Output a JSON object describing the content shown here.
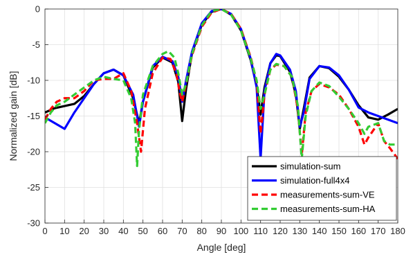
{
  "chart_data": {
    "type": "line",
    "xlabel": "Angle [deg]",
    "ylabel": "Normalized gain [dB]",
    "xlim": [
      0,
      180
    ],
    "ylim": [
      -30,
      0
    ],
    "xticks": [
      0,
      10,
      20,
      30,
      40,
      50,
      60,
      70,
      80,
      90,
      100,
      110,
      120,
      130,
      140,
      150,
      160,
      170,
      180
    ],
    "yticks": [
      0,
      -5,
      -10,
      -15,
      -20,
      -25,
      -30
    ],
    "grid": true,
    "legend_position": "bottom-right",
    "series": [
      {
        "name": "simulation-sum",
        "color": "#000000",
        "dash": "solid",
        "x": [
          0,
          5,
          10,
          15,
          20,
          25,
          30,
          35,
          40,
          45,
          48,
          50,
          55,
          60,
          65,
          68,
          70,
          72,
          75,
          80,
          85,
          90,
          95,
          100,
          105,
          108,
          110,
          112,
          115,
          118,
          120,
          125,
          128,
          130,
          132,
          135,
          140,
          145,
          150,
          155,
          160,
          165,
          170,
          175,
          180
        ],
        "y": [
          -14.5,
          -13.9,
          -13.6,
          -13.3,
          -12.2,
          -10.5,
          -9.0,
          -8.5,
          -9.3,
          -12.5,
          -16.0,
          -13.0,
          -8.2,
          -6.8,
          -7.5,
          -10.2,
          -15.7,
          -11.2,
          -6.2,
          -2.2,
          -0.4,
          0,
          -0.8,
          -3.0,
          -7.2,
          -10.8,
          -14.8,
          -11.0,
          -7.6,
          -6.5,
          -6.6,
          -8.8,
          -12.0,
          -16.8,
          -14.0,
          -9.6,
          -8.0,
          -8.3,
          -9.5,
          -11.3,
          -13.5,
          -15.2,
          -15.5,
          -14.8,
          -14.0
        ]
      },
      {
        "name": "simulation-full4x4",
        "color": "#0000ff",
        "dash": "solid",
        "x": [
          0,
          5,
          10,
          15,
          20,
          25,
          30,
          35,
          40,
          45,
          48,
          50,
          55,
          60,
          65,
          68,
          70,
          72,
          75,
          80,
          85,
          90,
          95,
          100,
          105,
          108,
          110,
          112,
          115,
          118,
          120,
          125,
          128,
          130,
          132,
          135,
          140,
          145,
          150,
          155,
          160,
          165,
          170,
          175,
          180
        ],
        "y": [
          -15.2,
          -16.0,
          -16.8,
          -14.5,
          -12.5,
          -10.5,
          -9.0,
          -8.5,
          -9.3,
          -12.0,
          -16.5,
          -13.0,
          -8.0,
          -6.7,
          -7.3,
          -9.5,
          -13.0,
          -10.0,
          -6.0,
          -2.0,
          -0.3,
          0,
          -0.7,
          -2.8,
          -7.0,
          -11.0,
          -21.0,
          -11.5,
          -7.6,
          -6.3,
          -6.5,
          -8.5,
          -11.5,
          -16.5,
          -14.5,
          -9.8,
          -8.0,
          -8.2,
          -9.3,
          -11.3,
          -13.8,
          -14.5,
          -15.0,
          -15.5,
          -16.0
        ]
      },
      {
        "name": "measurements-sum-VE",
        "color": "#ff0000",
        "dash": "dashed",
        "x": [
          0,
          3,
          6,
          10,
          15,
          20,
          25,
          30,
          35,
          40,
          44,
          47,
          49,
          51,
          55,
          60,
          64,
          67,
          69,
          70,
          72,
          75,
          80,
          85,
          90,
          95,
          100,
          105,
          108,
          110,
          112,
          115,
          118,
          122,
          126,
          129,
          131,
          133,
          136,
          140,
          145,
          150,
          155,
          160,
          163,
          165,
          170,
          173,
          176,
          180
        ],
        "y": [
          -15.5,
          -14.0,
          -13.0,
          -12.5,
          -12.5,
          -11.5,
          -10.0,
          -9.8,
          -9.8,
          -9.0,
          -11.5,
          -16.0,
          -20.0,
          -14.0,
          -9.0,
          -6.8,
          -7.0,
          -9.0,
          -12.0,
          -13.0,
          -10.5,
          -6.5,
          -2.5,
          -0.5,
          0,
          -0.7,
          -2.8,
          -6.8,
          -10.2,
          -17.5,
          -12.0,
          -8.5,
          -7.8,
          -8.0,
          -9.5,
          -14.0,
          -20.5,
          -14.5,
          -11.5,
          -10.5,
          -11.0,
          -12.0,
          -14.0,
          -16.5,
          -19.0,
          -18.0,
          -16.0,
          -18.5,
          -19.5,
          -21.0
        ]
      },
      {
        "name": "measurements-sum-HA",
        "color": "#33cc33",
        "dash": "dashed",
        "x": [
          0,
          3,
          6,
          10,
          15,
          20,
          25,
          30,
          35,
          40,
          44,
          46,
          47,
          48,
          50,
          55,
          60,
          63,
          66,
          68,
          70,
          72,
          75,
          80,
          85,
          90,
          95,
          100,
          105,
          108,
          110,
          112,
          115,
          118,
          122,
          126,
          129,
          131,
          133,
          136,
          140,
          145,
          150,
          155,
          160,
          163,
          165,
          170,
          173,
          176,
          180
        ],
        "y": [
          -16.0,
          -14.5,
          -13.5,
          -13.0,
          -12.0,
          -11.0,
          -10.0,
          -9.5,
          -9.8,
          -10.0,
          -12.5,
          -16.0,
          -22.0,
          -17.0,
          -12.0,
          -8.0,
          -6.3,
          -5.9,
          -6.8,
          -9.0,
          -12.0,
          -10.5,
          -6.3,
          -2.3,
          -0.3,
          0,
          -0.8,
          -3.0,
          -7.0,
          -10.0,
          -14.0,
          -12.0,
          -8.5,
          -7.7,
          -8.0,
          -9.5,
          -13.5,
          -21.0,
          -15.0,
          -11.5,
          -10.3,
          -10.8,
          -12.3,
          -14.0,
          -16.0,
          -17.5,
          -16.5,
          -16.0,
          -18.5,
          -19.0,
          -19.0
        ]
      }
    ]
  }
}
